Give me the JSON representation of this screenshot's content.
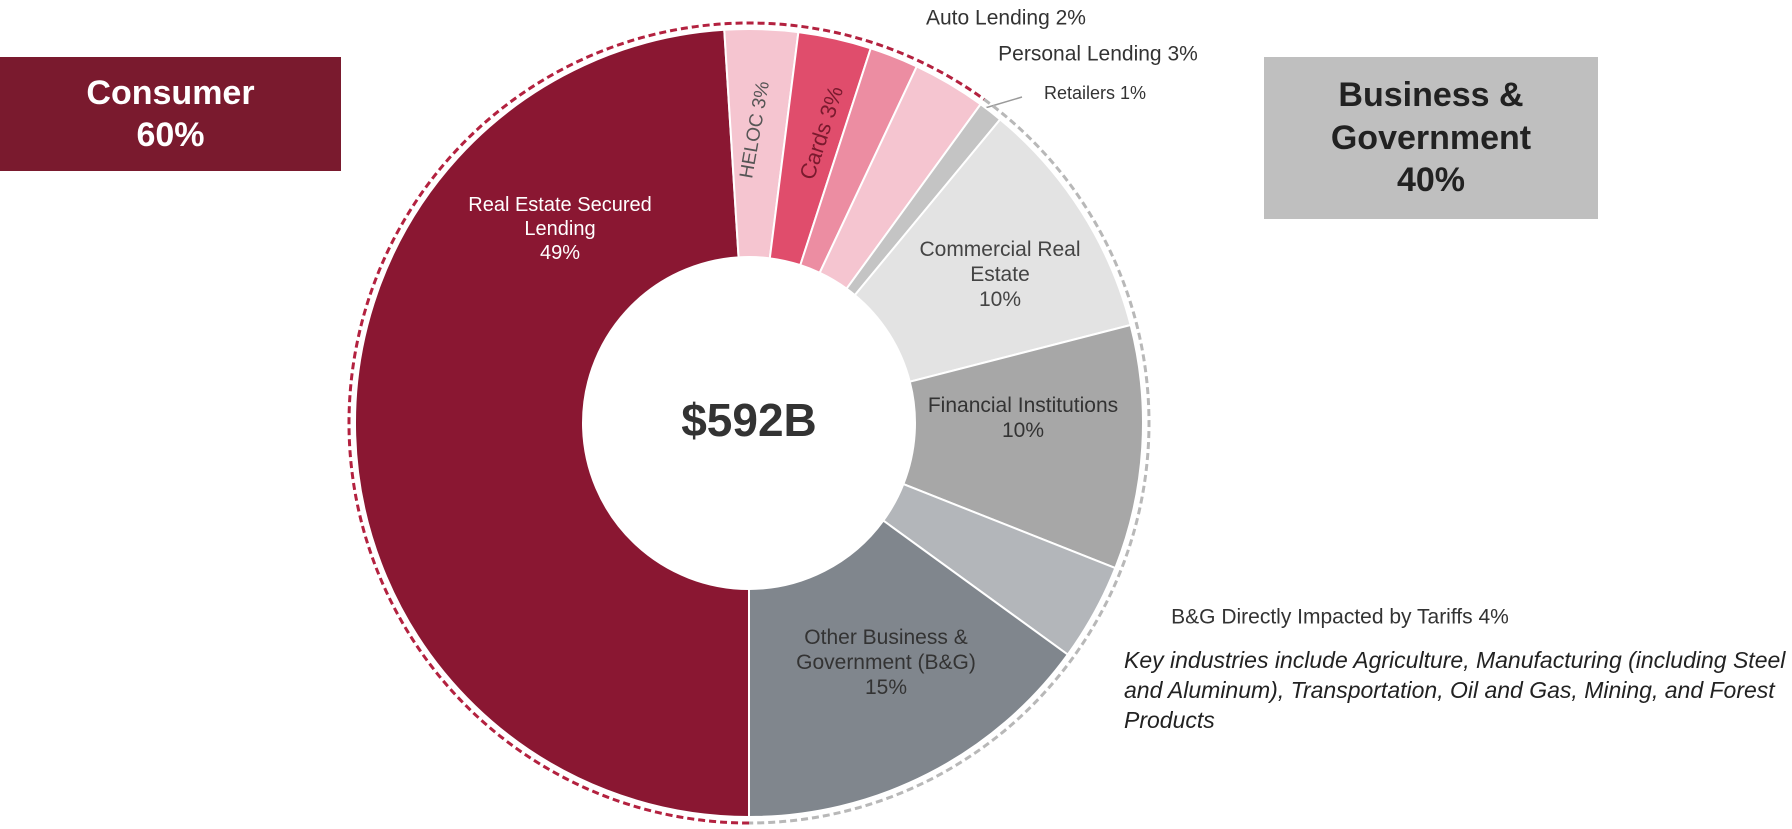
{
  "chart_data": {
    "type": "pie",
    "center_label": "$592B",
    "categories": [
      "Real Estate Secured Lending",
      "HELOC",
      "Cards",
      "Auto Lending",
      "Personal Lending",
      "Retailers",
      "Commercial Real Estate",
      "Financial Institutions",
      "B&G Directly Impacted by Tariffs",
      "Other Business & Government (B&G)"
    ],
    "values": [
      49,
      3,
      3,
      2,
      3,
      1,
      10,
      10,
      4,
      15
    ],
    "value_labels": [
      "49%",
      "3%",
      "3%",
      "2%",
      "3%",
      "1%",
      "10%",
      "10%",
      "4%",
      "15%"
    ],
    "colors": [
      "#8a1732",
      "#f5c5d0",
      "#e04d6c",
      "#ec8da2",
      "#f5c5d0",
      "#c4c4c4",
      "#e3e3e3",
      "#a7a7a7",
      "#b3b6ba",
      "#80868d"
    ],
    "groups": [
      {
        "name": "Consumer",
        "value": 60,
        "value_label": "60%",
        "color": "#7a1a2e"
      },
      {
        "name": "Business & Government",
        "value": 40,
        "value_label": "40%",
        "color": "#bfbfbf"
      }
    ],
    "note": "Key industries include Agriculture, Manufacturing (including Steel and Aluminum), Transportation, Oil and Gas, Mining, and Forest Products"
  }
}
